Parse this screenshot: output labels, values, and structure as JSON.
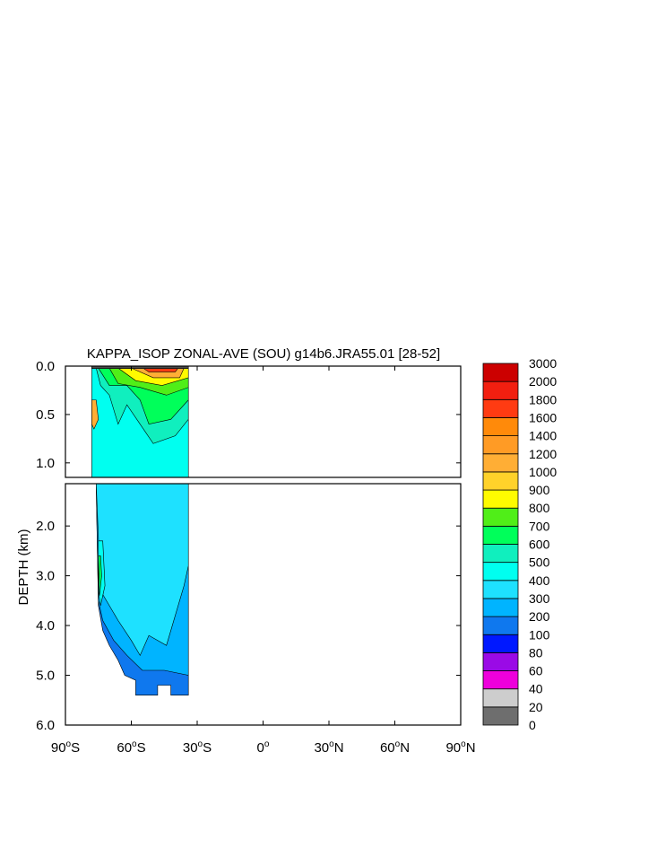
{
  "chart_data": {
    "type": "heatmap",
    "title": "KAPPA_ISOP ZONAL-AVE (SOU) g14b6.JRA55.01 [28-52]",
    "ylabel": "DEPTH (km)",
    "xlabel": "",
    "xlim": [
      -90,
      90
    ],
    "ylim": [
      0,
      6
    ],
    "x_ticks": [
      {
        "value": -90,
        "label": "90",
        "hemi": "S"
      },
      {
        "value": -60,
        "label": "60",
        "hemi": "S"
      },
      {
        "value": -30,
        "label": "30",
        "hemi": "S"
      },
      {
        "value": 0,
        "label": "0",
        "hemi": ""
      },
      {
        "value": 30,
        "label": "30",
        "hemi": "N"
      },
      {
        "value": 60,
        "label": "60",
        "hemi": "N"
      },
      {
        "value": 90,
        "label": "90",
        "hemi": "N"
      }
    ],
    "upper_panel": {
      "ylim": [
        0,
        1.15
      ],
      "y_ticks": [
        "0.0",
        "0.5",
        "1.0"
      ],
      "y_values": [
        0,
        0.5,
        1.0
      ]
    },
    "lower_panel": {
      "ylim": [
        1.15,
        6.0
      ],
      "y_ticks": [
        "2.0",
        "3.0",
        "4.0",
        "5.0",
        "6.0"
      ],
      "y_values": [
        2,
        3,
        4,
        5,
        6
      ]
    },
    "colorbar": {
      "levels": [
        {
          "label": "0",
          "color": "#6e6e6e"
        },
        {
          "label": "20",
          "color": "#cdcdcd"
        },
        {
          "label": "40",
          "color": "#ee00dc"
        },
        {
          "label": "60",
          "color": "#9a0ae6"
        },
        {
          "label": "80",
          "color": "#0018ff"
        },
        {
          "label": "100",
          "color": "#0f78ee"
        },
        {
          "label": "200",
          "color": "#00b4ff"
        },
        {
          "label": "300",
          "color": "#1ee1ff"
        },
        {
          "label": "400",
          "color": "#00fff0"
        },
        {
          "label": "500",
          "color": "#10efbe"
        },
        {
          "label": "600",
          "color": "#00ff5a"
        },
        {
          "label": "700",
          "color": "#50ee18"
        },
        {
          "label": "800",
          "color": "#fffb00"
        },
        {
          "label": "900",
          "color": "#ffd22a"
        },
        {
          "label": "1000",
          "color": "#ffae35"
        },
        {
          "label": "1200",
          "color": "#ff9b25"
        },
        {
          "label": "1400",
          "color": "#ff8a0a"
        },
        {
          "label": "1600",
          "color": "#ff3b12"
        },
        {
          "label": "1800",
          "color": "#f21f10"
        },
        {
          "label": "2000",
          "color": "#cc0000"
        }
      ],
      "top_label": "3000"
    }
  }
}
